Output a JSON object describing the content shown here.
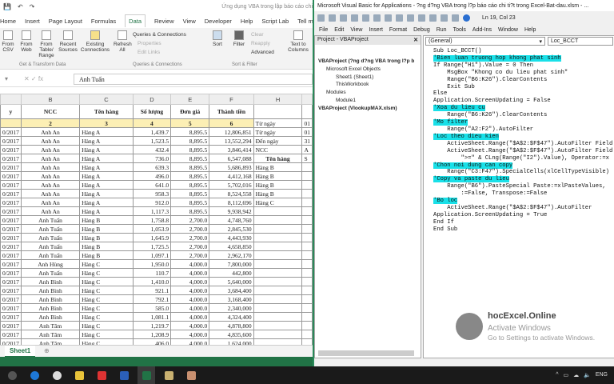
{
  "excel": {
    "title": "Ứng dụng VBA trong lập báo cáo chi",
    "tabs": [
      "Home",
      "Insert",
      "Page Layout",
      "Formulas",
      "Data",
      "Review",
      "View",
      "Developer",
      "Help",
      "Script Lab",
      "Tell me what"
    ],
    "active_tab": "Data",
    "ribbon": {
      "from_csv": "From CSV",
      "from_web": "From Web",
      "from_table": "From Table/ Range",
      "recent": "Recent Sources",
      "existing": "Existing Connections",
      "refresh": "Refresh All",
      "queries": "Queries & Connections",
      "properties": "Properties",
      "edit_links": "Edit Links",
      "sort": "Sort",
      "filter": "Filter",
      "clear": "Clear",
      "reapply": "Reapply",
      "advanced": "Advanced",
      "text_to_columns": "Text to Columns",
      "group1": "Get & Transform Data",
      "group2": "Queries & Connections",
      "group3": "Sort & Filter"
    },
    "formula_value": "Anh Tuấn",
    "columns": [
      "",
      "B",
      "C",
      "D",
      "E",
      "F",
      "H",
      ""
    ],
    "header_row": [
      "y",
      "NCC",
      "Tên hàng",
      "Số lượng",
      "Đơn giá",
      "Thành tiền",
      "",
      ""
    ],
    "index_row": [
      "",
      "2",
      "3",
      "4",
      "5",
      "6",
      "Từ ngày",
      "01"
    ],
    "rows": [
      [
        "0/2017",
        "Anh An",
        "Hàng A",
        "1,439.7",
        "8,895.5",
        "12,806,851",
        "Từ ngày",
        "01"
      ],
      [
        "0/2017",
        "Anh An",
        "Hàng A",
        "1,523.5",
        "8,895.5",
        "13,552,294",
        "Đến ngày",
        "31"
      ],
      [
        "0/2017",
        "Anh An",
        "Hàng A",
        "432.4",
        "8,895.5",
        "3,846,414",
        "NCC",
        "A"
      ],
      [
        "0/2017",
        "Anh An",
        "Hàng A",
        "736.0",
        "8,895.5",
        "6,547,088",
        "Tên hàng",
        "S"
      ],
      [
        "0/2017",
        "Anh An",
        "Hàng A",
        "639.3",
        "8,895.5",
        "5,686,893",
        "Hàng B",
        ""
      ],
      [
        "0/2017",
        "Anh An",
        "Hàng A",
        "496.0",
        "8,895.5",
        "4,412,168",
        "Hàng B",
        ""
      ],
      [
        "0/2017",
        "Anh An",
        "Hàng A",
        "641.0",
        "8,895.5",
        "5,702,016",
        "Hàng B",
        ""
      ],
      [
        "0/2017",
        "Anh An",
        "Hàng A",
        "958.3",
        "8,895.5",
        "8,524,558",
        "Hàng B",
        ""
      ],
      [
        "0/2017",
        "Anh An",
        "Hàng A",
        "912.0",
        "8,895.5",
        "8,112,696",
        "Hàng C",
        ""
      ],
      [
        "0/2017",
        "Anh An",
        "Hàng A",
        "1,117.3",
        "8,895.5",
        "9,938,942",
        "",
        ""
      ],
      [
        "0/2017",
        "Anh Tuấn",
        "Hàng B",
        "1,758.8",
        "2,700.0",
        "4,748,760",
        "",
        ""
      ],
      [
        "0/2017",
        "Anh Tuấn",
        "Hàng B",
        "1,053.9",
        "2,700.0",
        "2,845,530",
        "",
        ""
      ],
      [
        "0/2017",
        "Anh Tuấn",
        "Hàng B",
        "1,645.9",
        "2,700.0",
        "4,443,930",
        "",
        ""
      ],
      [
        "0/2017",
        "Anh Tuấn",
        "Hàng B",
        "1,725.5",
        "2,700.0",
        "4,658,850",
        "",
        ""
      ],
      [
        "0/2017",
        "Anh Tuấn",
        "Hàng B",
        "1,097.1",
        "2,700.0",
        "2,962,170",
        "",
        ""
      ],
      [
        "0/2017",
        "Anh Hùng",
        "Hàng C",
        "1,950.0",
        "4,000.0",
        "7,800,000",
        "",
        ""
      ],
      [
        "0/2017",
        "Anh Tuấn",
        "Hàng C",
        "110.7",
        "4,000.0",
        "442,800",
        "",
        ""
      ],
      [
        "0/2017",
        "Anh Bình",
        "Hàng C",
        "1,410.0",
        "4,000.0",
        "5,640,000",
        "",
        ""
      ],
      [
        "0/2017",
        "Anh Bình",
        "Hàng C",
        "921.1",
        "4,000.0",
        "3,684,400",
        "",
        ""
      ],
      [
        "0/2017",
        "Anh Bình",
        "Hàng C",
        "792.1",
        "4,000.0",
        "3,168,400",
        "",
        ""
      ],
      [
        "0/2017",
        "Anh Bình",
        "Hàng C",
        "585.0",
        "4,000.0",
        "2,340,000",
        "",
        ""
      ],
      [
        "0/2017",
        "Anh Bình",
        "Hàng C",
        "1,081.1",
        "4,000.0",
        "4,324,400",
        "",
        ""
      ],
      [
        "0/2017",
        "Anh Tâm",
        "Hàng C",
        "1,219.7",
        "4,000.0",
        "4,878,800",
        "",
        ""
      ],
      [
        "0/2017",
        "Anh Tâm",
        "Hàng C",
        "1,208.9",
        "4,000.0",
        "4,835,600",
        "",
        ""
      ],
      [
        "0/2017",
        "Anh Tâm",
        "Hàng C",
        "406.0",
        "4,000.0",
        "1,624,000",
        "",
        ""
      ]
    ],
    "sheet_tab": "Sheet1",
    "accent": "#217346"
  },
  "vba": {
    "title": "Microsoft Visual Basic for Applications - ?ng d?ng VBA trong l?p báo cáo chi ti?t trong Excel-Bat-dau.xlsm - ...",
    "position": "Ln 19, Col 23",
    "menu": [
      "File",
      "Edit",
      "View",
      "Insert",
      "Format",
      "Debug",
      "Run",
      "Tools",
      "Add-Ins",
      "Window",
      "Help"
    ],
    "project_title": "Project - VBAProject",
    "tree": [
      "VBAProject (?ng d?ng VBA trong l?p b",
      "Microsoft Excel Objects",
      "Sheet1 (Sheet1)",
      "ThisWorkbook",
      "Modules",
      "Module1",
      "VBAProject (VlookupMAX.xlsm)"
    ],
    "object_dropdown": "(General)",
    "proc_dropdown": "Loc_BCCT",
    "code": [
      {
        "t": "Sub Loc_BCCT()"
      },
      {
        "t": "'Bien luan truong hop khong phat sinh",
        "c": true
      },
      {
        "t": "If Range(\"H1\").Value = 0 Then"
      },
      {
        "t": "    MsgBox \"Khong co du lieu phat sinh\""
      },
      {
        "t": "    Range(\"B6:K26\").ClearContents"
      },
      {
        "t": "    Exit Sub"
      },
      {
        "t": "Else"
      },
      {
        "t": "Application.ScreenUpdating = False"
      },
      {
        "t": "'Xoa du lieu cu",
        "c": true
      },
      {
        "t": "    Range(\"B6:K26\").ClearContents"
      },
      {
        "t": "'Mo filter",
        "c": true
      },
      {
        "t": "    Range(\"A2:F2\").AutoFilter"
      },
      {
        "t": "'Loc theo dieu kien",
        "c": true
      },
      {
        "t": "    ActiveSheet.Range(\"$A$2:$F$47\").AutoFilter Field"
      },
      {
        "t": "    ActiveSheet.Range(\"$A$2:$F$47\").AutoFilter Field"
      },
      {
        "t": "        \">=\" & CLng(Range(\"I2\").Value), Operator:=x"
      },
      {
        "t": "'Chon noi dung can copy",
        "c": true
      },
      {
        "t": "    Range(\"C3:F47\").SpecialCells(xlCellTypeVisible)"
      },
      {
        "t": "'Copy va paste du lieu",
        "c": true
      },
      {
        "t": "    Range(\"B6\").PasteSpecial Paste:=xlPasteValues,"
      },
      {
        "t": "        :=False, Transpose:=False"
      },
      {
        "t": "'Bo loc",
        "c": true
      },
      {
        "t": "    ActiveSheet.Range(\"$A$2:$F$47\").AutoFilter"
      },
      {
        "t": "Application.ScreenUpdating = True"
      },
      {
        "t": "End If"
      },
      {
        "t": "End Sub"
      }
    ],
    "comment_highlight": "#19e0e8",
    "watermark1": "Activate Windows",
    "watermark2": "Go to Settings to activate Windows.",
    "logo": "hocExcel.Online"
  },
  "taskbar": {
    "icons": [
      "search-icon",
      "edge-icon",
      "chrome-icon",
      "file-explorer-icon",
      "office-icon",
      "word-icon",
      "excel-icon",
      "app-icon",
      "app2-icon"
    ],
    "lang": "ENG"
  }
}
